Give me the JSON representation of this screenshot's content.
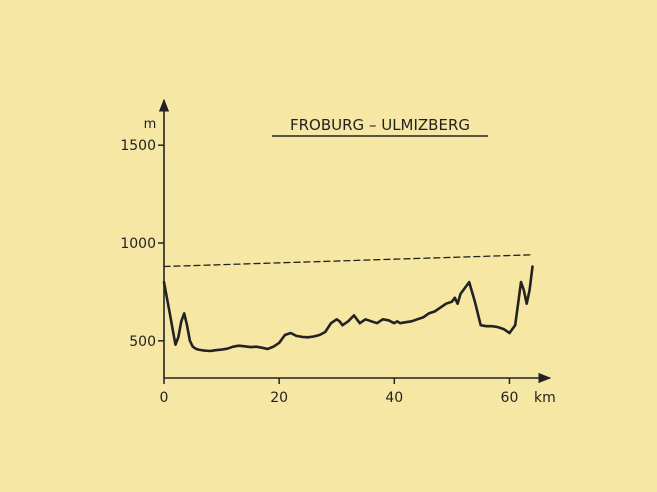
{
  "chart_data": {
    "type": "line",
    "title": "FROBURG – ULMIZBERG",
    "xlabel": "",
    "ylabel": "",
    "x_unit": "km",
    "y_unit": "m",
    "xlim": [
      0,
      66
    ],
    "ylim": [
      310,
      1680
    ],
    "x_ticks": [
      0,
      20,
      40,
      60
    ],
    "y_ticks": [
      500,
      1000,
      1500
    ],
    "grid": false,
    "series": [
      {
        "style": "solid",
        "x": [
          0,
          0.5,
          1,
          1.5,
          2,
          2.5,
          3,
          3.5,
          4,
          4.5,
          5,
          5.5,
          6,
          7,
          8,
          9,
          10,
          11,
          12,
          13,
          14,
          15,
          16,
          17,
          18,
          19,
          20,
          21,
          22,
          23,
          24,
          25,
          26,
          27,
          28,
          29,
          30,
          30.5,
          31,
          32,
          33,
          34,
          35,
          36,
          37,
          38,
          39,
          40,
          40.5,
          41,
          42,
          43,
          44,
          45,
          46,
          47,
          48,
          49,
          50,
          50.5,
          51,
          51.5,
          52,
          53,
          54,
          55,
          56,
          57,
          58,
          59,
          60,
          61,
          62,
          62.5,
          63,
          63.5,
          64
        ],
        "y": [
          800,
          720,
          640,
          560,
          480,
          520,
          600,
          640,
          580,
          500,
          470,
          460,
          455,
          450,
          448,
          452,
          455,
          460,
          470,
          475,
          472,
          468,
          470,
          465,
          458,
          470,
          490,
          530,
          540,
          525,
          520,
          518,
          522,
          530,
          545,
          590,
          610,
          600,
          580,
          600,
          630,
          590,
          610,
          600,
          590,
          610,
          605,
          590,
          600,
          590,
          595,
          600,
          610,
          620,
          640,
          650,
          670,
          690,
          700,
          720,
          690,
          740,
          760,
          800,
          700,
          580,
          575,
          575,
          570,
          560,
          540,
          580,
          800,
          760,
          690,
          760,
          880
        ]
      },
      {
        "style": "dashed",
        "x": [
          0,
          64
        ],
        "y": [
          880,
          940
        ]
      }
    ]
  }
}
